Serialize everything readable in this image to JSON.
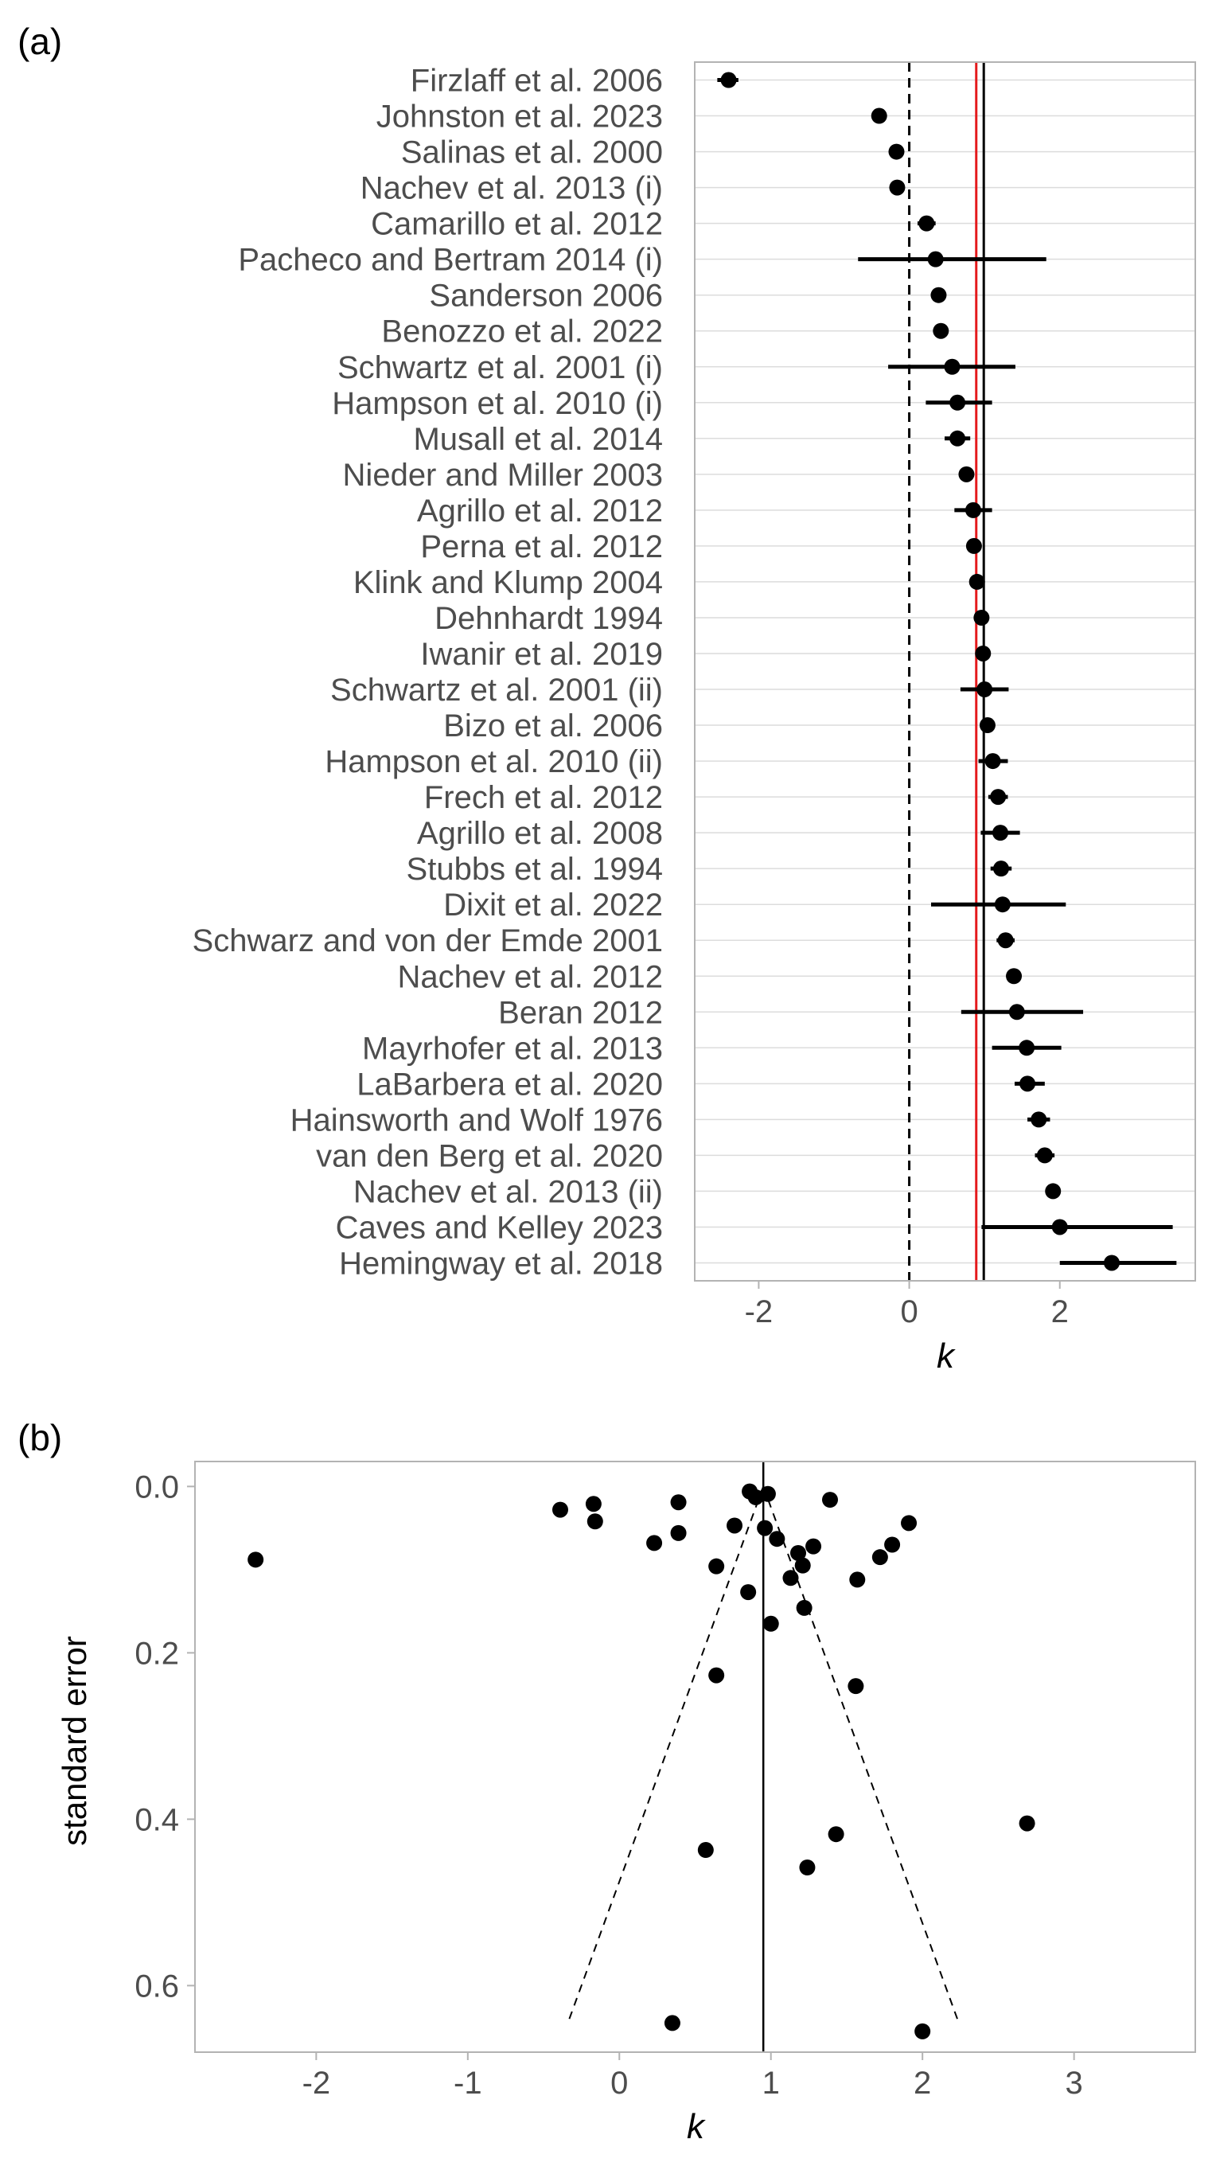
{
  "panels": {
    "a": {
      "tag": "(a)"
    },
    "b": {
      "tag": "(b)"
    }
  },
  "colors": {
    "point": "#000000",
    "pooled_line": "#000000",
    "red_line": "#e41a1c",
    "grid": "#dcdcdc",
    "panel_border": "#b3b3b3",
    "tick_text": "#4d4d4d"
  },
  "chart_data": [
    {
      "type": "scatter",
      "subtype": "forest-plot",
      "xlabel": "k",
      "ylabel": "",
      "xlim": [
        -2.85,
        3.8
      ],
      "xticks": [
        -2,
        0,
        2
      ],
      "grid": true,
      "reference_lines": [
        {
          "x": 0,
          "style": "dashed",
          "color": "#000000"
        },
        {
          "x": 0.89,
          "style": "solid",
          "color": "#e41a1c"
        },
        {
          "x": 0.99,
          "style": "solid",
          "color": "#000000"
        }
      ],
      "studies": [
        {
          "label": "Firzlaff et al. 2006",
          "k": -2.4,
          "lo": -2.55,
          "hi": -2.27
        },
        {
          "label": "Johnston et al. 2023",
          "k": -0.4,
          "lo": -0.45,
          "hi": -0.35
        },
        {
          "label": "Salinas et al. 2000",
          "k": -0.17,
          "lo": -0.21,
          "hi": -0.13
        },
        {
          "label": "Nachev et al. 2013 (i)",
          "k": -0.16,
          "lo": -0.21,
          "hi": -0.11
        },
        {
          "label": "Camarillo et al. 2012",
          "k": 0.23,
          "lo": 0.11,
          "hi": 0.35
        },
        {
          "label": "Pacheco and Bertram 2014 (i)",
          "k": 0.35,
          "lo": -0.68,
          "hi": 1.82
        },
        {
          "label": "Sanderson 2006",
          "k": 0.39,
          "lo": 0.34,
          "hi": 0.44
        },
        {
          "label": "Benozzo et al. 2022",
          "k": 0.42,
          "lo": 0.37,
          "hi": 0.47
        },
        {
          "label": "Schwartz et al. 2001 (i)",
          "k": 0.57,
          "lo": -0.28,
          "hi": 1.41
        },
        {
          "label": "Hampson et al. 2010 (i)",
          "k": 0.64,
          "lo": 0.22,
          "hi": 1.1
        },
        {
          "label": "Musall et al. 2014",
          "k": 0.64,
          "lo": 0.47,
          "hi": 0.81
        },
        {
          "label": "Nieder and Miller 2003",
          "k": 0.76,
          "lo": 0.71,
          "hi": 0.81
        },
        {
          "label": "Agrillo et al. 2012",
          "k": 0.85,
          "lo": 0.6,
          "hi": 1.1
        },
        {
          "label": "Perna et al. 2012",
          "k": 0.86,
          "lo": 0.8,
          "hi": 0.92
        },
        {
          "label": "Klink and Klump 2004",
          "k": 0.9,
          "lo": 0.84,
          "hi": 0.96
        },
        {
          "label": "Dehnhardt 1994",
          "k": 0.96,
          "lo": 0.9,
          "hi": 1.02
        },
        {
          "label": "Iwanir et al. 2019",
          "k": 0.98,
          "lo": 0.92,
          "hi": 1.04
        },
        {
          "label": "Schwartz et al. 2001 (ii)",
          "k": 1.0,
          "lo": 0.68,
          "hi": 1.32
        },
        {
          "label": "Bizo et al. 2006",
          "k": 1.04,
          "lo": 0.94,
          "hi": 1.14
        },
        {
          "label": "Hampson et al. 2010 (ii)",
          "k": 1.11,
          "lo": 0.92,
          "hi": 1.31
        },
        {
          "label": "Frech et al. 2012",
          "k": 1.18,
          "lo": 1.05,
          "hi": 1.31
        },
        {
          "label": "Agrillo et al. 2008",
          "k": 1.21,
          "lo": 0.95,
          "hi": 1.47
        },
        {
          "label": "Stubbs et al. 1994",
          "k": 1.22,
          "lo": 1.08,
          "hi": 1.36
        },
        {
          "label": "Dixit et al. 2022",
          "k": 1.24,
          "lo": 0.29,
          "hi": 2.08
        },
        {
          "label": "Schwarz and von der Emde 2001",
          "k": 1.28,
          "lo": 1.16,
          "hi": 1.4
        },
        {
          "label": "Nachev et al. 2012",
          "k": 1.39,
          "lo": 1.33,
          "hi": 1.45
        },
        {
          "label": "Beran 2012",
          "k": 1.43,
          "lo": 0.69,
          "hi": 2.31
        },
        {
          "label": "Mayrhofer et al. 2013",
          "k": 1.56,
          "lo": 1.1,
          "hi": 2.02
        },
        {
          "label": "LaBarbera et al. 2020",
          "k": 1.57,
          "lo": 1.4,
          "hi": 1.8
        },
        {
          "label": "Hainsworth and Wolf 1976",
          "k": 1.72,
          "lo": 1.57,
          "hi": 1.87
        },
        {
          "label": "van den Berg et al. 2020",
          "k": 1.8,
          "lo": 1.67,
          "hi": 1.93
        },
        {
          "label": "Nachev et al. 2013 (ii)",
          "k": 1.91,
          "lo": 1.86,
          "hi": 1.96
        },
        {
          "label": "Caves and Kelley 2023",
          "k": 2.0,
          "lo": 0.96,
          "hi": 3.5
        },
        {
          "label": "Hemingway et al. 2018",
          "k": 2.69,
          "lo": 2.0,
          "hi": 3.55
        }
      ]
    },
    {
      "type": "scatter",
      "subtype": "funnel-plot",
      "xlabel": "k",
      "ylabel": "standard error",
      "xlim": [
        -2.8,
        3.8
      ],
      "ylim": [
        -0.03,
        0.68
      ],
      "y_reversed": true,
      "xticks": [
        -2,
        -1,
        0,
        1,
        2,
        3
      ],
      "yticks": [
        0.0,
        0.2,
        0.4,
        0.6
      ],
      "grid": false,
      "center_line": {
        "x": 0.95,
        "style": "solid"
      },
      "funnel": {
        "apex": [
          0.95,
          0.0
        ],
        "left_base": [
          -0.33,
          0.64
        ],
        "right_base": [
          2.23,
          0.64
        ],
        "style": "dashed"
      },
      "points": [
        {
          "x": -2.4,
          "y": 0.088
        },
        {
          "x": -0.39,
          "y": 0.028
        },
        {
          "x": -0.17,
          "y": 0.021
        },
        {
          "x": -0.16,
          "y": 0.042
        },
        {
          "x": 0.23,
          "y": 0.068
        },
        {
          "x": 0.39,
          "y": 0.019
        },
        {
          "x": 0.39,
          "y": 0.056
        },
        {
          "x": 0.35,
          "y": 0.645
        },
        {
          "x": 0.57,
          "y": 0.437
        },
        {
          "x": 0.64,
          "y": 0.227
        },
        {
          "x": 0.64,
          "y": 0.096
        },
        {
          "x": 0.76,
          "y": 0.047
        },
        {
          "x": 0.85,
          "y": 0.127
        },
        {
          "x": 0.86,
          "y": 0.006
        },
        {
          "x": 0.9,
          "y": 0.013
        },
        {
          "x": 0.96,
          "y": 0.05
        },
        {
          "x": 0.98,
          "y": 0.009
        },
        {
          "x": 1.0,
          "y": 0.165
        },
        {
          "x": 1.04,
          "y": 0.063
        },
        {
          "x": 1.13,
          "y": 0.11
        },
        {
          "x": 1.18,
          "y": 0.08
        },
        {
          "x": 1.21,
          "y": 0.095
        },
        {
          "x": 1.22,
          "y": 0.146
        },
        {
          "x": 1.24,
          "y": 0.458
        },
        {
          "x": 1.28,
          "y": 0.072
        },
        {
          "x": 1.39,
          "y": 0.016
        },
        {
          "x": 1.43,
          "y": 0.418
        },
        {
          "x": 1.56,
          "y": 0.24
        },
        {
          "x": 1.57,
          "y": 0.112
        },
        {
          "x": 1.72,
          "y": 0.085
        },
        {
          "x": 1.8,
          "y": 0.07
        },
        {
          "x": 1.91,
          "y": 0.044
        },
        {
          "x": 2.0,
          "y": 0.655
        },
        {
          "x": 2.69,
          "y": 0.405
        }
      ]
    }
  ]
}
